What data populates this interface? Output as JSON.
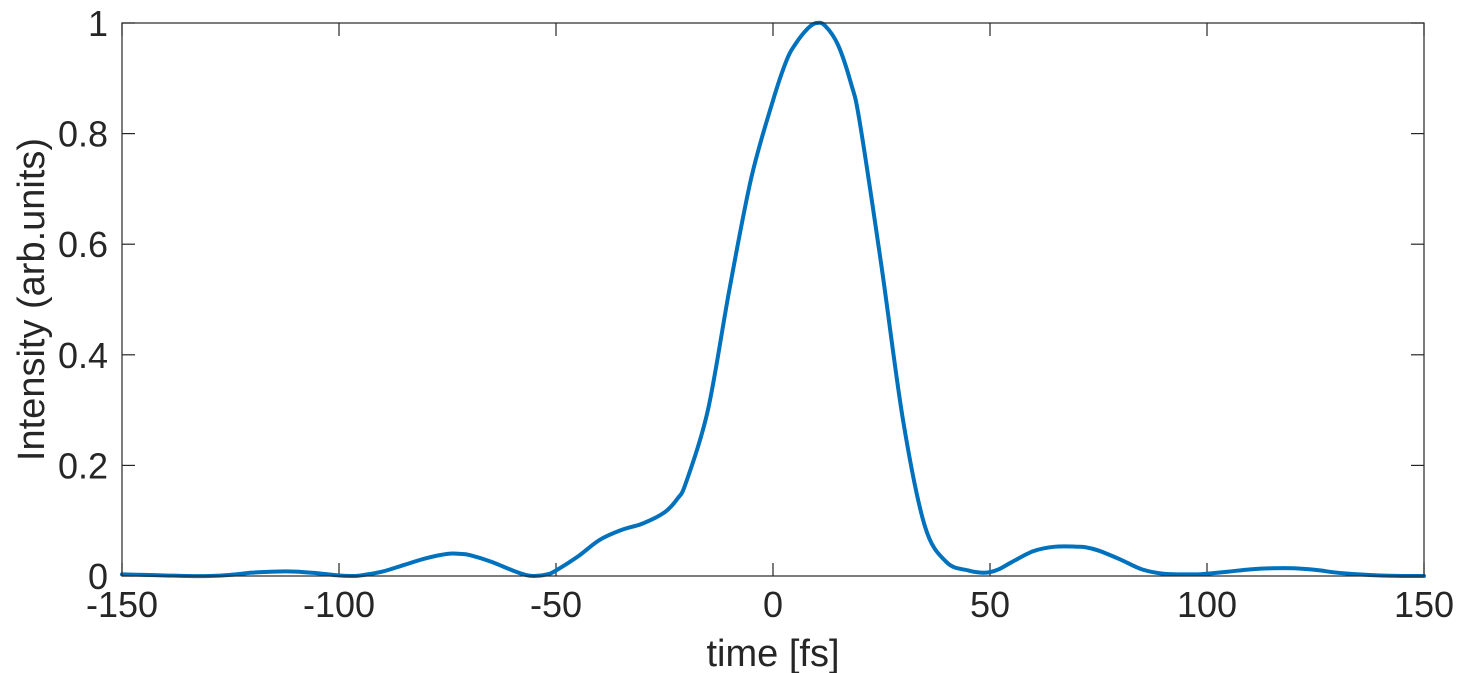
{
  "chart_data": {
    "type": "line",
    "title": "",
    "xlabel": "time [fs]",
    "ylabel": "Intensity (arb.units)",
    "xlim": [
      -150,
      150
    ],
    "ylim": [
      0,
      1
    ],
    "x_ticks": [
      "-150",
      "-100",
      "-50",
      "0",
      "50",
      "100",
      "150"
    ],
    "y_ticks": [
      "0",
      "0.2",
      "0.4",
      "0.6",
      "0.8",
      "1"
    ],
    "grid": false,
    "line_color": "#0072BD",
    "axis_color": "#262626",
    "series": [
      {
        "x": [
          -150,
          -145,
          -140,
          -135,
          -130,
          -125,
          -120,
          -115,
          -110,
          -105,
          -100,
          -97,
          -95,
          -90,
          -85,
          -80,
          -75,
          -72,
          -70,
          -65,
          -60,
          -57,
          -55,
          -52,
          -50,
          -45,
          -40,
          -35,
          -30,
          -25,
          -22,
          -20,
          -15,
          -10,
          -5,
          0,
          3,
          5,
          8,
          10,
          12,
          15,
          18,
          20,
          25,
          30,
          35,
          40,
          45,
          48,
          50,
          52,
          55,
          60,
          65,
          70,
          72,
          75,
          80,
          85,
          90,
          95,
          98,
          100,
          105,
          110,
          115,
          120,
          125,
          130,
          135,
          140,
          145,
          150
        ],
        "y": [
          0.003,
          0.002,
          0.001,
          0.0,
          0.0,
          0.002,
          0.006,
          0.008,
          0.008,
          0.005,
          0.001,
          0.0,
          0.001,
          0.008,
          0.02,
          0.032,
          0.04,
          0.04,
          0.038,
          0.026,
          0.01,
          0.002,
          0.0,
          0.003,
          0.01,
          0.035,
          0.065,
          0.083,
          0.095,
          0.115,
          0.14,
          0.17,
          0.3,
          0.52,
          0.72,
          0.86,
          0.93,
          0.96,
          0.99,
          1.0,
          0.995,
          0.96,
          0.89,
          0.82,
          0.56,
          0.28,
          0.09,
          0.025,
          0.01,
          0.006,
          0.007,
          0.012,
          0.025,
          0.045,
          0.053,
          0.053,
          0.052,
          0.046,
          0.03,
          0.012,
          0.004,
          0.003,
          0.003,
          0.004,
          0.008,
          0.012,
          0.014,
          0.014,
          0.011,
          0.006,
          0.003,
          0.001,
          0.0,
          0.0
        ]
      }
    ]
  }
}
